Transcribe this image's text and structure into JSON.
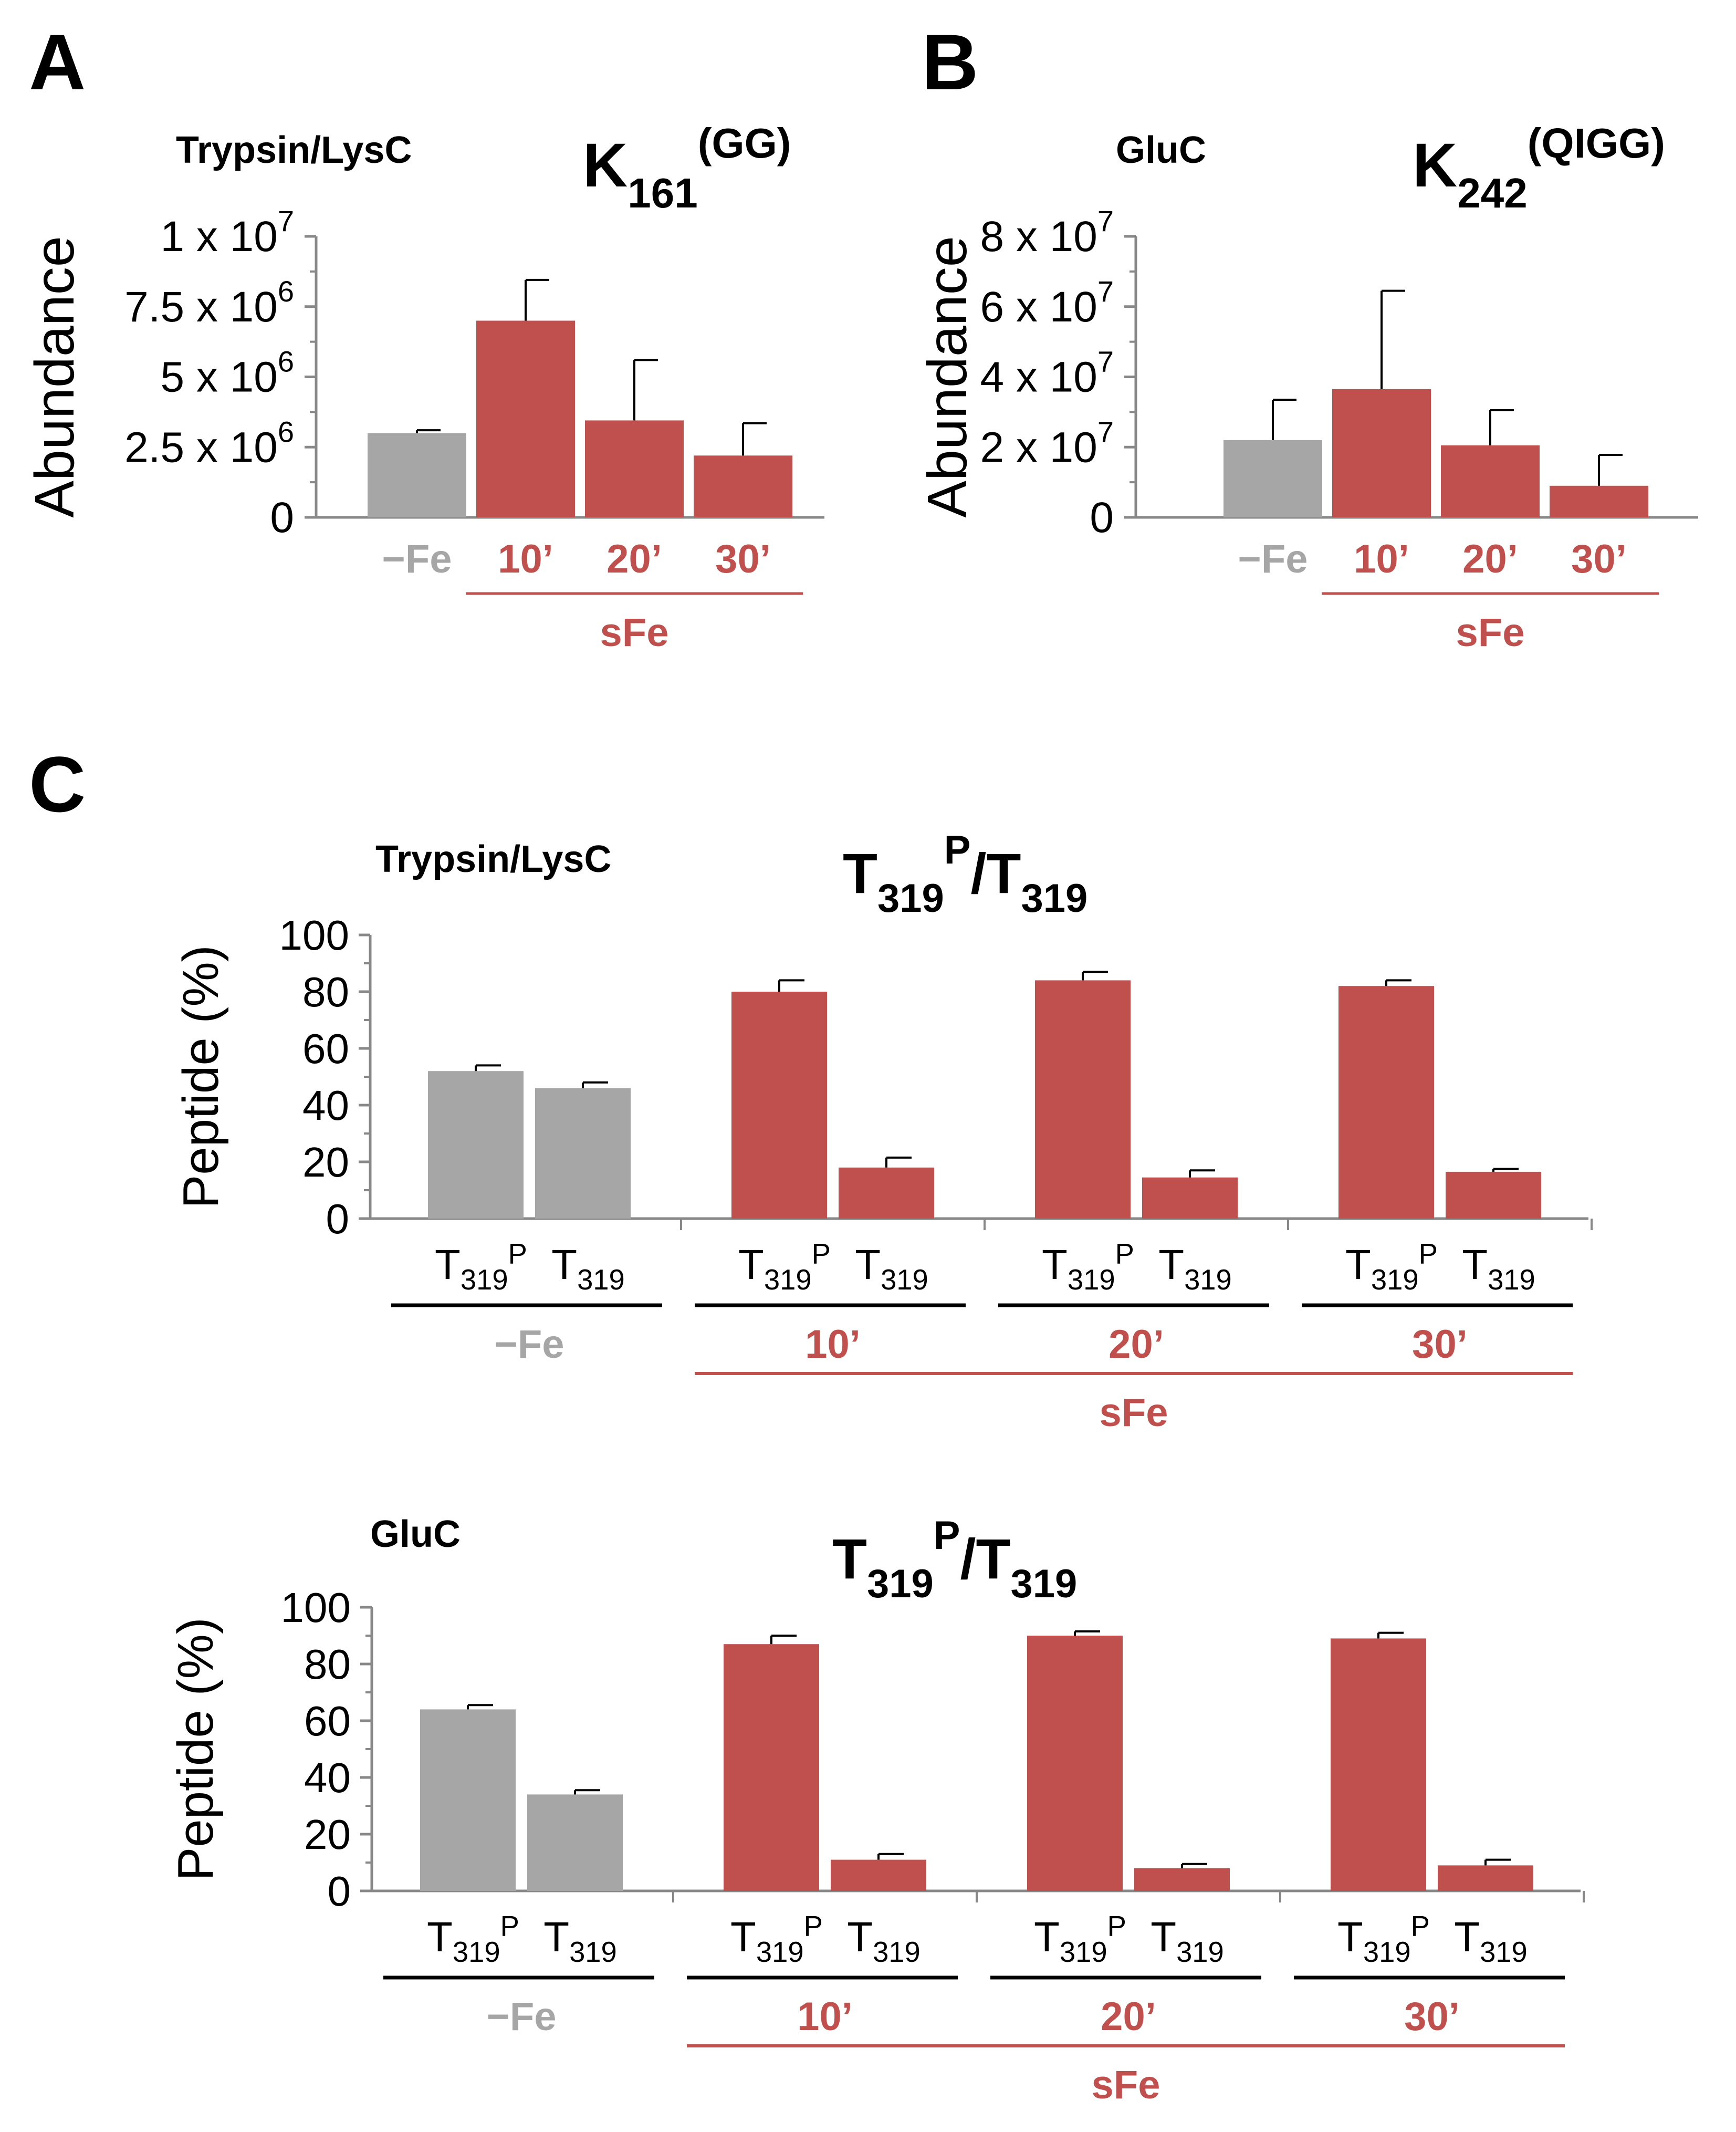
{
  "colors": {
    "gray": "#a6a6a6",
    "red": "#c0504d",
    "axis": "#888888",
    "err": "#000000",
    "text": "#000000"
  },
  "subscript_labels": {
    "t319": "319",
    "p": "P",
    "t": "T"
  },
  "panels": {
    "A": {
      "letter": "A",
      "enzyme": "Trypsin/LysC",
      "title_main": "K",
      "title_sub": "161",
      "title_sup": "(GG)",
      "ylabel": "Abundance",
      "ticks": [
        {
          "value": 0,
          "base": "0",
          "exp": ""
        },
        {
          "value": 2.5,
          "base": "2.5 x 10",
          "exp": "6"
        },
        {
          "value": 5,
          "base": "5 x 10",
          "exp": "6"
        },
        {
          "value": 7.5,
          "base": "7.5 x 10",
          "exp": "6"
        },
        {
          "value": 10,
          "base": "1 x 10",
          "exp": "7"
        }
      ],
      "condition_labels": [
        "−Fe",
        "10’",
        "20’",
        "30’"
      ],
      "group_label": "sFe"
    },
    "B": {
      "letter": "B",
      "enzyme": "GluC",
      "title_main": "K",
      "title_sub": "242",
      "title_sup": "(QIGG)",
      "ylabel": "Abundance",
      "ticks": [
        {
          "value": 0,
          "base": "0",
          "exp": ""
        },
        {
          "value": 2,
          "base": "2 x 10",
          "exp": "7"
        },
        {
          "value": 4,
          "base": "4 x 10",
          "exp": "7"
        },
        {
          "value": 6,
          "base": "6 x 10",
          "exp": "7"
        },
        {
          "value": 8,
          "base": "8 x 10",
          "exp": "7"
        }
      ],
      "condition_labels": [
        "−Fe",
        "10’",
        "20’",
        "30’"
      ],
      "group_label": "sFe"
    },
    "C": {
      "letter": "C",
      "top": {
        "enzyme": "Trypsin/LysC",
        "title": "T319P/T319",
        "ylabel": "Peptide (%)",
        "ticks": [
          "0",
          "20",
          "40",
          "60",
          "80",
          "100"
        ],
        "condition_labels": [
          "−Fe",
          "10’",
          "20’",
          "30’"
        ],
        "group_label": "sFe"
      },
      "bottom": {
        "enzyme": "GluC",
        "title": "T319P/T319",
        "ylabel": "Peptide (%)",
        "ticks": [
          "0",
          "20",
          "40",
          "60",
          "80",
          "100"
        ],
        "condition_labels": [
          "−Fe",
          "10’",
          "20’",
          "30’"
        ],
        "group_label": "sFe"
      }
    }
  },
  "chart_data": [
    {
      "panel": "A",
      "type": "bar",
      "title": "K161(GG)",
      "subtitle": "Trypsin/LysC",
      "ylabel": "Abundance",
      "categories": [
        "−Fe",
        "10’",
        "20’",
        "30’"
      ],
      "values": [
        3000000,
        7000000,
        3450000,
        2200000
      ],
      "errors": [
        100000,
        1450000,
        2150000,
        1150000
      ],
      "ylim": [
        0,
        10000000
      ]
    },
    {
      "panel": "B",
      "type": "bar",
      "title": "K242(QIGG)",
      "subtitle": "GluC",
      "ylabel": "Abundance",
      "categories": [
        "−Fe",
        "10’",
        "20’",
        "30’"
      ],
      "values": [
        22000000,
        36500000,
        20500000,
        9000000
      ],
      "errors": [
        11500000,
        28000000,
        10000000,
        8800000
      ],
      "ylim": [
        0,
        80000000
      ]
    },
    {
      "panel": "C-top",
      "type": "bar",
      "title": "T319P/T319",
      "subtitle": "Trypsin/LysC",
      "ylabel": "Peptide (%)",
      "categories": [
        "−Fe",
        "10’",
        "20’",
        "30’"
      ],
      "series": [
        {
          "name": "T319P",
          "values": [
            52,
            80,
            84,
            82
          ],
          "errors": [
            2,
            4,
            3,
            2
          ]
        },
        {
          "name": "T319",
          "values": [
            46,
            18,
            14.5,
            16.5
          ],
          "errors": [
            2,
            3.5,
            2.5,
            1
          ]
        }
      ],
      "ylim": [
        0,
        100
      ]
    },
    {
      "panel": "C-bottom",
      "type": "bar",
      "title": "T319P/T319",
      "subtitle": "GluC",
      "ylabel": "Peptide (%)",
      "categories": [
        "−Fe",
        "10’",
        "20’",
        "30’"
      ],
      "series": [
        {
          "name": "T319P",
          "values": [
            64,
            87,
            90,
            89
          ],
          "errors": [
            1.5,
            3,
            1.5,
            2
          ]
        },
        {
          "name": "T319",
          "values": [
            34,
            11,
            8,
            9
          ],
          "errors": [
            1.5,
            2,
            1.5,
            2
          ]
        }
      ],
      "ylim": [
        0,
        100
      ]
    }
  ]
}
